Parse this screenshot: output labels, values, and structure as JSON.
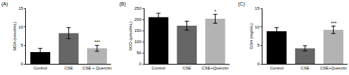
{
  "chart_data": [
    {
      "type": "bar",
      "title": "(A)",
      "y_label": "MDA (nmol/mL)",
      "categories": [
        "Control",
        "CSE",
        "CSE + Quercitn"
      ],
      "values": [
        3.2,
        8.3,
        4.2
      ],
      "errors": [
        1.0,
        1.5,
        0.8
      ],
      "significance": [
        null,
        null,
        "***"
      ],
      "colors": [
        "#000000",
        "#666666",
        "#b3b3b3"
      ],
      "ylim": [
        0,
        15
      ],
      "yticks": [
        0,
        5,
        10,
        15
      ],
      "grid": false
    },
    {
      "type": "bar",
      "title": "(B)",
      "y_label": "SOD (μmol/mL)",
      "categories": [
        "Control",
        "CSE",
        "CSE+Quercitn"
      ],
      "values": [
        210,
        172,
        203
      ],
      "errors": [
        18,
        20,
        20
      ],
      "significance": [
        null,
        null,
        "*"
      ],
      "colors": [
        "#000000",
        "#666666",
        "#b3b3b3"
      ],
      "ylim": [
        0,
        250
      ],
      "yticks": [
        0,
        50,
        100,
        150,
        200,
        250
      ],
      "grid": false
    },
    {
      "type": "bar",
      "title": "(C)",
      "y_label": "GSH (mg/mL)",
      "categories": [
        "Control",
        "CSE",
        "CSE+Quercitn"
      ],
      "values": [
        8.8,
        4.2,
        9.2
      ],
      "errors": [
        1.0,
        0.7,
        1.0
      ],
      "significance": [
        null,
        null,
        "***"
      ],
      "colors": [
        "#000000",
        "#666666",
        "#b3b3b3"
      ],
      "ylim": [
        0,
        15
      ],
      "yticks": [
        0,
        5,
        10,
        15
      ],
      "grid": false
    }
  ]
}
